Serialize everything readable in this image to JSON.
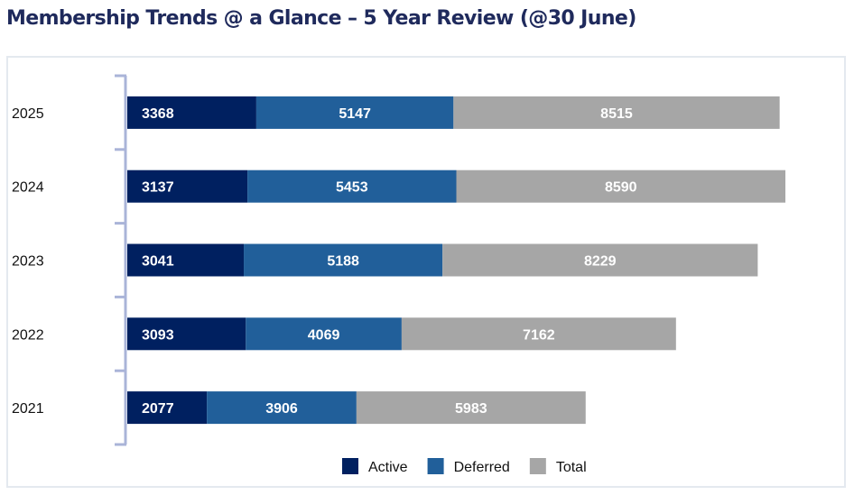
{
  "title": "Membership Trends @ a Glance – 5 Year Review (@30 June)",
  "chart_data": {
    "type": "bar",
    "orientation": "horizontal",
    "stacked": true,
    "title": "Membership Trends @ a Glance – 5 Year Review (@30 June)",
    "xlabel": "",
    "ylabel": "",
    "categories": [
      "2025",
      "2024",
      "2023",
      "2022",
      "2021"
    ],
    "series": [
      {
        "name": "Active",
        "color": "#002060",
        "values": [
          3368,
          3137,
          3041,
          3093,
          2077
        ]
      },
      {
        "name": "Deferred",
        "color": "#215f9a",
        "values": [
          5147,
          5453,
          5188,
          4069,
          3906
        ]
      },
      {
        "name": "Total",
        "color": "#a6a6a6",
        "values": [
          8515,
          8590,
          8229,
          7162,
          5983
        ]
      }
    ],
    "grid": false,
    "value_axis_visible": false,
    "data_labels": true,
    "legend": "bottom-center"
  }
}
